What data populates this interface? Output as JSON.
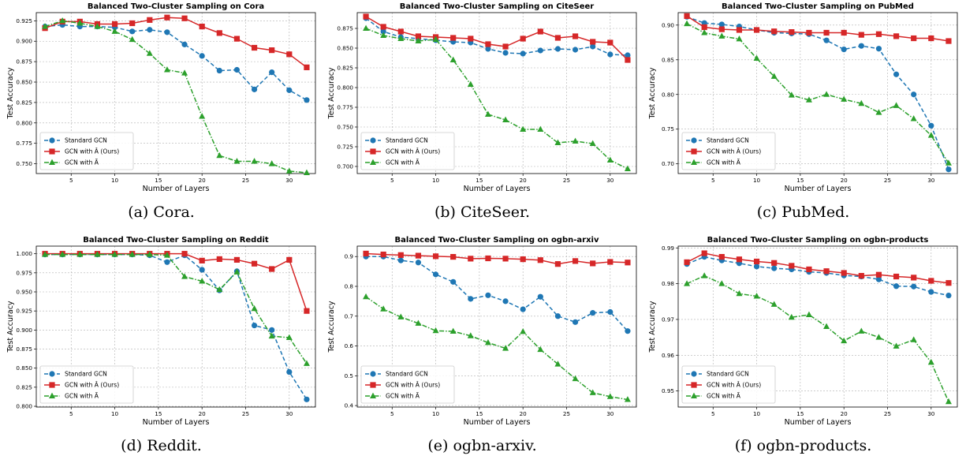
{
  "colors": {
    "standard": "#1f77b4",
    "ours": "#d62728",
    "tilde": "#2ca02c"
  },
  "chart_data": [
    {
      "type": "line",
      "title": "Balanced Two-Cluster Sampling on Cora",
      "caption": "(a) Cora.",
      "xlabel": "Number of Layers",
      "ylabel": "Test Accuracy",
      "xlim": [
        1,
        33
      ],
      "ylim": [
        0.738,
        0.935
      ],
      "xticks": [
        5,
        10,
        15,
        20,
        25,
        30
      ],
      "yticks": [
        "0.750",
        "0.775",
        "0.800",
        "0.825",
        "0.850",
        "0.875",
        "0.900",
        "0.925"
      ],
      "grid": true,
      "legend_position": "lower-left",
      "x": [
        2,
        4,
        6,
        8,
        10,
        12,
        14,
        16,
        18,
        20,
        22,
        24,
        26,
        28,
        30,
        32
      ],
      "series": [
        {
          "name": "Standard GCN",
          "values": [
            0.918,
            0.92,
            0.918,
            0.918,
            0.917,
            0.912,
            0.914,
            0.911,
            0.896,
            0.882,
            0.864,
            0.865,
            0.841,
            0.862,
            0.84,
            0.828
          ]
        },
        {
          "name": "GCN with Â (Ours)",
          "values": [
            0.916,
            0.924,
            0.924,
            0.921,
            0.921,
            0.922,
            0.926,
            0.929,
            0.928,
            0.918,
            0.91,
            0.903,
            0.892,
            0.889,
            0.884,
            0.868
          ]
        },
        {
          "name": "GCN with Ã",
          "values": [
            0.918,
            0.925,
            0.922,
            0.918,
            0.912,
            0.902,
            0.885,
            0.865,
            0.861,
            0.808,
            0.76,
            0.753,
            0.753,
            0.75,
            0.741,
            0.739
          ]
        }
      ]
    },
    {
      "type": "line",
      "title": "Balanced Two-Cluster Sampling on CiteSeer",
      "caption": "(b) CiteSeer.",
      "xlabel": "Number of Layers",
      "ylabel": "Test Accuracy",
      "xlim": [
        1,
        33
      ],
      "ylim": [
        0.691,
        0.895
      ],
      "xticks": [
        5,
        10,
        15,
        20,
        25,
        30
      ],
      "yticks": [
        "0.700",
        "0.725",
        "0.750",
        "0.775",
        "0.800",
        "0.825",
        "0.850",
        "0.875"
      ],
      "grid": true,
      "legend_position": "lower-left",
      "x": [
        2,
        4,
        6,
        8,
        10,
        12,
        14,
        16,
        18,
        20,
        22,
        24,
        26,
        28,
        30,
        32
      ],
      "series": [
        {
          "name": "Standard GCN",
          "values": [
            0.888,
            0.871,
            0.864,
            0.862,
            0.86,
            0.858,
            0.857,
            0.849,
            0.844,
            0.843,
            0.847,
            0.849,
            0.848,
            0.852,
            0.842,
            0.841
          ]
        },
        {
          "name": "GCN with Â (Ours)",
          "values": [
            0.89,
            0.877,
            0.871,
            0.865,
            0.864,
            0.863,
            0.862,
            0.855,
            0.852,
            0.862,
            0.871,
            0.863,
            0.865,
            0.858,
            0.857,
            0.835
          ]
        },
        {
          "name": "GCN with Ã",
          "values": [
            0.875,
            0.866,
            0.862,
            0.859,
            0.861,
            0.835,
            0.804,
            0.766,
            0.759,
            0.747,
            0.747,
            0.73,
            0.732,
            0.729,
            0.708,
            0.697
          ]
        }
      ]
    },
    {
      "type": "line",
      "title": "Balanced Two-Cluster Sampling on PubMed",
      "caption": "(c) PubMed.",
      "xlabel": "Number of Layers",
      "ylabel": "Test Accuracy",
      "xlim": [
        1,
        33
      ],
      "ylim": [
        0.686,
        0.918
      ],
      "xticks": [
        5,
        10,
        15,
        20,
        25,
        30
      ],
      "yticks": [
        "0.70",
        "0.75",
        "0.80",
        "0.85",
        "0.90"
      ],
      "grid": true,
      "legend_position": "lower-left",
      "x": [
        2,
        4,
        6,
        8,
        10,
        12,
        14,
        16,
        18,
        20,
        22,
        24,
        26,
        28,
        30,
        32
      ],
      "series": [
        {
          "name": "Standard GCN",
          "values": [
            0.912,
            0.903,
            0.901,
            0.898,
            0.893,
            0.889,
            0.888,
            0.887,
            0.878,
            0.865,
            0.87,
            0.866,
            0.829,
            0.8,
            0.755,
            0.692
          ]
        },
        {
          "name": "GCN with Â (Ours)",
          "values": [
            0.913,
            0.897,
            0.894,
            0.893,
            0.893,
            0.891,
            0.89,
            0.889,
            0.889,
            0.889,
            0.886,
            0.887,
            0.884,
            0.881,
            0.881,
            0.877
          ]
        },
        {
          "name": "GCN with Ã",
          "values": [
            0.902,
            0.889,
            0.884,
            0.88,
            0.852,
            0.826,
            0.799,
            0.792,
            0.8,
            0.793,
            0.787,
            0.774,
            0.784,
            0.765,
            0.741,
            0.701
          ]
        }
      ]
    },
    {
      "type": "line",
      "title": "Balanced Two-Cluster Sampling on Reddit",
      "caption": "(d) Reddit.",
      "xlabel": "Number of Layers",
      "ylabel": "Test Accuracy",
      "xlim": [
        1,
        33
      ],
      "ylim": [
        0.799,
        1.01
      ],
      "xticks": [
        5,
        10,
        15,
        20,
        25,
        30
      ],
      "yticks": [
        "0.800",
        "0.825",
        "0.850",
        "0.875",
        "0.900",
        "0.925",
        "0.950",
        "0.975",
        "1.000"
      ],
      "grid": true,
      "legend_position": "lower-left",
      "x": [
        2,
        4,
        6,
        8,
        10,
        12,
        14,
        16,
        18,
        20,
        22,
        24,
        26,
        28,
        30,
        32
      ],
      "series": [
        {
          "name": "Standard GCN",
          "values": [
            0.999,
            0.999,
            0.999,
            0.999,
            0.999,
            0.999,
            0.998,
            0.989,
            0.998,
            0.979,
            0.952,
            0.977,
            0.906,
            0.9,
            0.845,
            0.809
          ]
        },
        {
          "name": "GCN with Â (Ours)",
          "values": [
            1.0,
            1.0,
            1.0,
            1.0,
            1.0,
            1.0,
            1.0,
            1.0,
            1.0,
            0.991,
            0.993,
            0.992,
            0.987,
            0.98,
            0.992,
            0.925
          ]
        },
        {
          "name": "GCN with Ã",
          "values": [
            0.999,
            0.999,
            0.999,
            0.999,
            0.999,
            0.999,
            0.999,
            0.998,
            0.97,
            0.964,
            0.953,
            0.976,
            0.928,
            0.892,
            0.89,
            0.856
          ]
        }
      ]
    },
    {
      "type": "line",
      "title": "Balanced Two-Cluster Sampling on ogbn-arxiv",
      "caption": "(e) ogbn-arxiv.",
      "xlabel": "Number of Layers",
      "ylabel": "Test Accuracy",
      "xlim": [
        1,
        33
      ],
      "ylim": [
        0.395,
        0.935
      ],
      "xticks": [
        5,
        10,
        15,
        20,
        25,
        30
      ],
      "yticks": [
        "0.4",
        "0.5",
        "0.6",
        "0.7",
        "0.8",
        "0.9"
      ],
      "grid": true,
      "legend_position": "lower-left",
      "x": [
        2,
        4,
        6,
        8,
        10,
        12,
        14,
        16,
        18,
        20,
        22,
        24,
        26,
        28,
        30,
        32
      ],
      "series": [
        {
          "name": "Standard GCN",
          "values": [
            0.9,
            0.9,
            0.887,
            0.88,
            0.84,
            0.815,
            0.758,
            0.77,
            0.75,
            0.723,
            0.765,
            0.7,
            0.68,
            0.711,
            0.714,
            0.65
          ]
        },
        {
          "name": "GCN with Â (Ours)",
          "values": [
            0.91,
            0.907,
            0.905,
            0.903,
            0.901,
            0.899,
            0.893,
            0.894,
            0.893,
            0.891,
            0.888,
            0.875,
            0.885,
            0.877,
            0.882,
            0.88
          ]
        },
        {
          "name": "GCN with Ã",
          "values": [
            0.765,
            0.724,
            0.697,
            0.676,
            0.651,
            0.649,
            0.634,
            0.611,
            0.592,
            0.648,
            0.588,
            0.539,
            0.49,
            0.443,
            0.43,
            0.42
          ]
        }
      ]
    },
    {
      "type": "line",
      "title": "Balanced Two-Cluster Sampling on ogbn-products",
      "caption": "(f) ogbn-products.",
      "xlabel": "Number of Layers",
      "ylabel": "Test Accuracy",
      "xlim": [
        1,
        33
      ],
      "ylim": [
        0.9455,
        0.9905
      ],
      "xticks": [
        5,
        10,
        15,
        20,
        25,
        30
      ],
      "yticks": [
        "0.95",
        "0.96",
        "0.97",
        "0.98",
        "0.99"
      ],
      "grid": true,
      "legend_position": "lower-left",
      "x": [
        2,
        4,
        6,
        8,
        10,
        12,
        14,
        16,
        18,
        20,
        22,
        24,
        26,
        28,
        30,
        32
      ],
      "series": [
        {
          "name": "Standard GCN",
          "values": [
            0.9855,
            0.9875,
            0.9865,
            0.9857,
            0.9848,
            0.9843,
            0.984,
            0.9833,
            0.983,
            0.9823,
            0.982,
            0.9812,
            0.9793,
            0.9792,
            0.9777,
            0.9767
          ]
        },
        {
          "name": "GCN with Â (Ours)",
          "values": [
            0.986,
            0.9885,
            0.9875,
            0.9868,
            0.9862,
            0.9858,
            0.985,
            0.984,
            0.9835,
            0.983,
            0.9822,
            0.9825,
            0.982,
            0.9817,
            0.9808,
            0.9802
          ]
        },
        {
          "name": "GCN with Ã",
          "values": [
            0.98,
            0.9822,
            0.98,
            0.9772,
            0.9765,
            0.9742,
            0.9706,
            0.9713,
            0.968,
            0.964,
            0.9667,
            0.965,
            0.9625,
            0.9643,
            0.958,
            0.947
          ]
        }
      ]
    }
  ]
}
